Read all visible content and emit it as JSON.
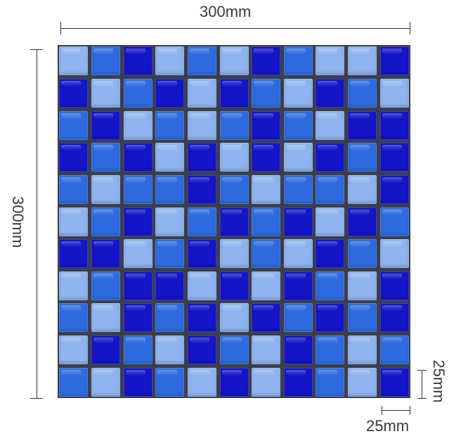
{
  "dimensions": {
    "width_label": "300mm",
    "height_label": "300mm",
    "tile_width_label": "25mm",
    "tile_height_label": "25mm"
  },
  "mosaic": {
    "rows": 11,
    "cols": 11,
    "colors": {
      "D": "#1414c8",
      "M": "#2f6be0",
      "L": "#8fb4f0"
    },
    "pattern": [
      "LMDLMLDMLLD",
      "DLMDLDMLDML",
      "MDLMLMDMLDD",
      "DMDLDLDLDMD",
      "MLMMDMLMMLD",
      "LMDLMDMDLDM",
      "DDLMDLMLDML",
      "LMDDLDLDMLD",
      "MLDMDLDMDMD",
      "LDMLDMLDMLM",
      "MLDMLDLDMLD"
    ]
  }
}
